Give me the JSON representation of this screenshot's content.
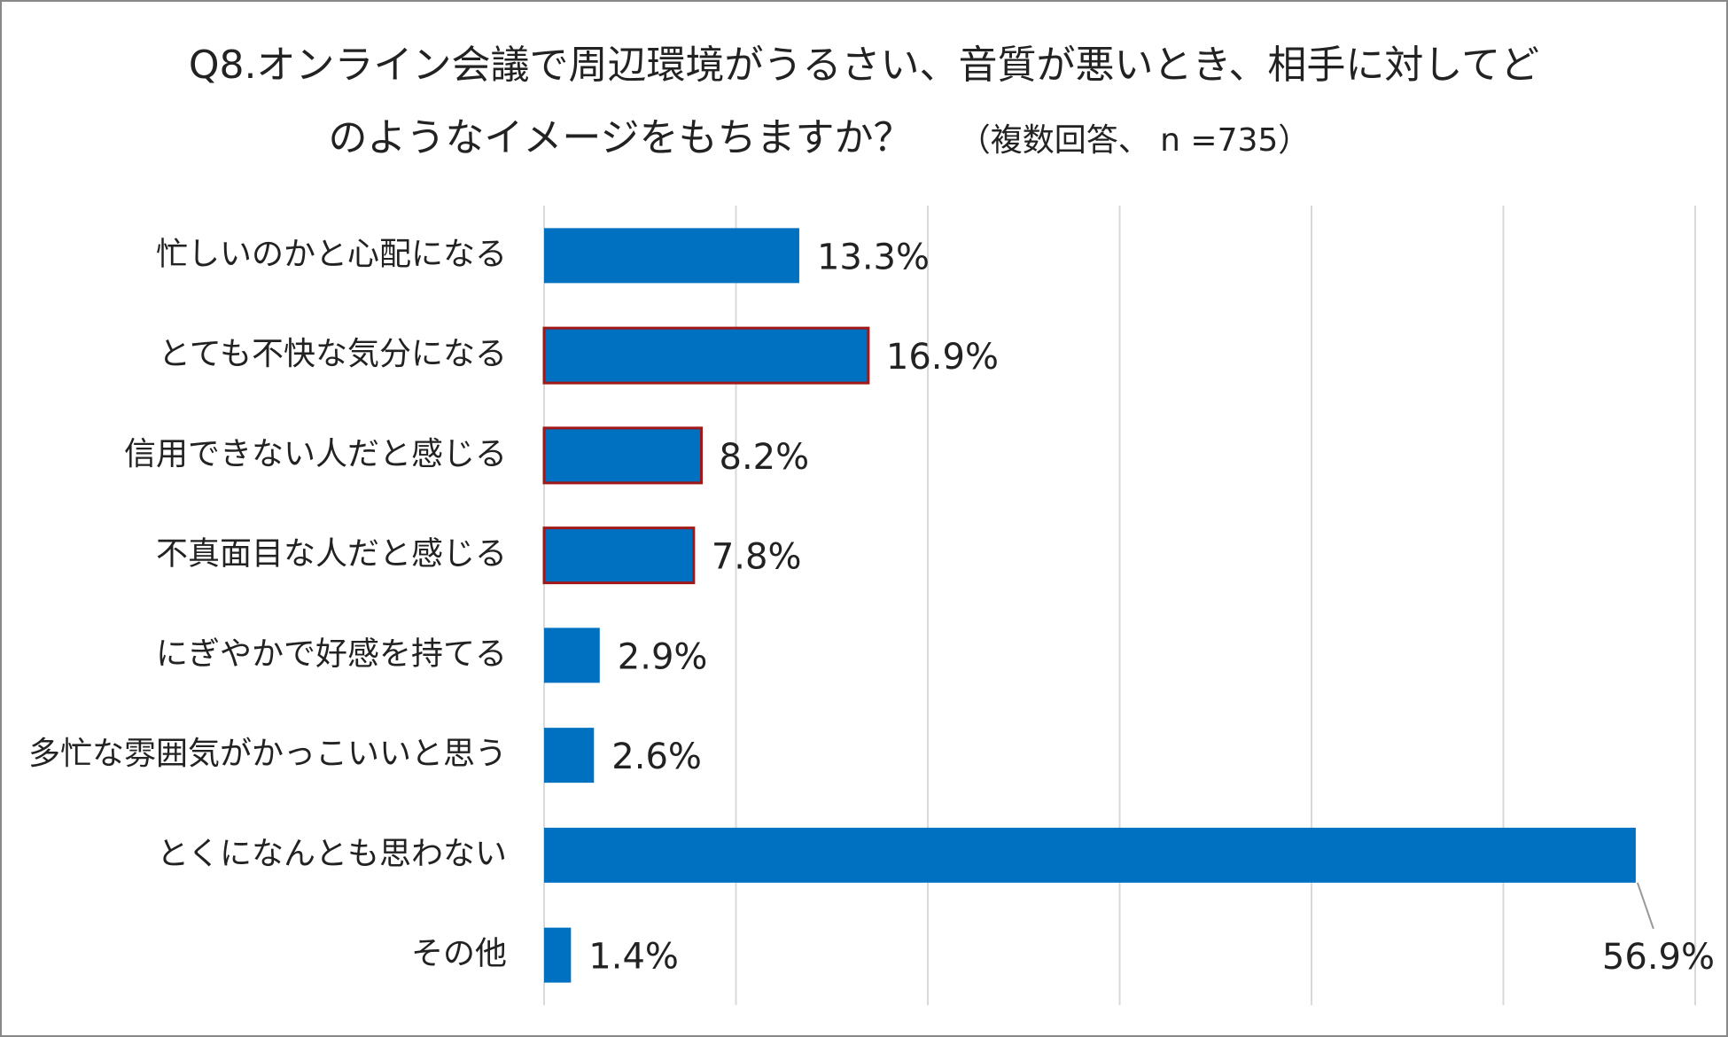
{
  "chart_data": {
    "type": "barh",
    "title": [
      "Q8.オンライン会議で周辺環境がうるさい、音質が悪いとき、相手に対してど",
      "のようなイメージをもちますか？"
    ],
    "subtitle": "（複数回答、 n =735）",
    "categories": [
      "忙しいのかと心配になる",
      "とても不快な気分になる",
      "信用できない人だと感じる",
      "不真面目な人だと感じる",
      "にぎやかで好感を持てる",
      "多忙な雰囲気がかっこいいと思う",
      "とくになんとも思わない",
      "その他"
    ],
    "values": [
      13.3,
      16.9,
      8.2,
      7.8,
      2.9,
      2.6,
      56.9,
      1.4
    ],
    "value_labels": [
      "13.3%",
      "16.9%",
      "8.2%",
      "7.8%",
      "2.9%",
      "2.6%",
      "56.9%",
      "1.4%"
    ],
    "color": "#0070c0",
    "edgecolors": [
      "#0070c0",
      "#a01818",
      "#a01818",
      "#a01818",
      "#0070c0",
      "#0070c0",
      "#0070c0",
      "#0070c0"
    ],
    "xlim": [
      0,
      60
    ],
    "xticks": [
      0,
      10,
      20,
      30,
      40,
      50,
      60
    ],
    "grid": true
  }
}
